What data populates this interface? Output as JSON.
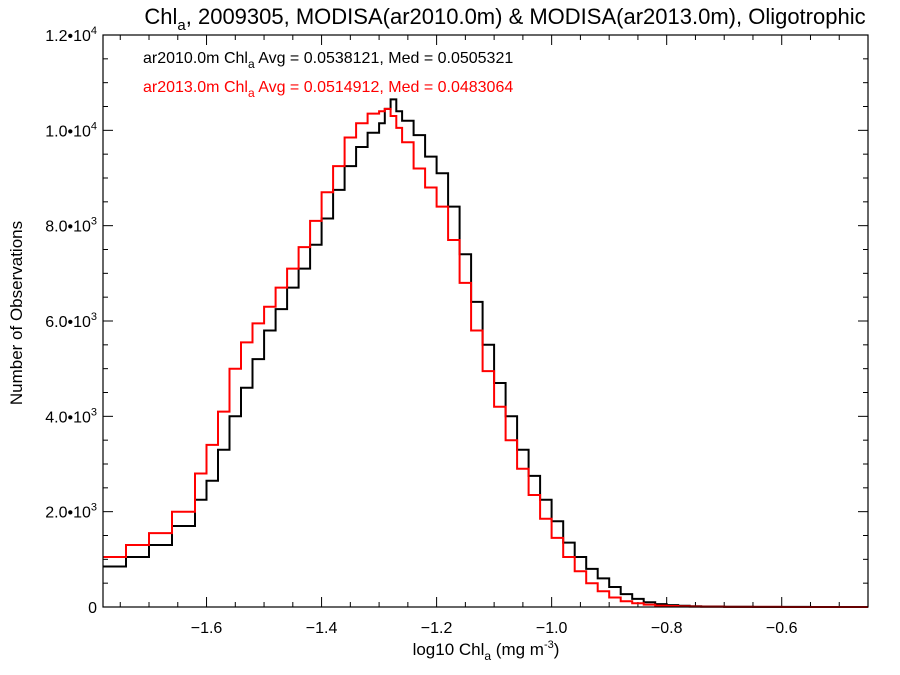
{
  "chart_data": {
    "type": "line",
    "title": {
      "main": "Chl",
      "sub": "a",
      "rest": ", 2009305, MODISA(ar2010.0m) & MODISA(ar2013.0m), Oligotrophic"
    },
    "xlabel": {
      "pre": "log10 Chl",
      "sub": "a",
      "mid": " (mg m",
      "sup": "-3",
      "post": ")"
    },
    "ylabel": "Number of Observations",
    "xlim": [
      -1.78,
      -0.45
    ],
    "ylim": [
      0,
      12000
    ],
    "x_ticks": [
      {
        "value": -1.6,
        "label": "−1.6"
      },
      {
        "value": -1.4,
        "label": "−1.4"
      },
      {
        "value": -1.2,
        "label": "−1.2"
      },
      {
        "value": -1.0,
        "label": "−1.0"
      },
      {
        "value": -0.8,
        "label": "−0.8"
      },
      {
        "value": -0.6,
        "label": "−0.6"
      }
    ],
    "y_ticks": [
      {
        "value": 0,
        "mant": "0",
        "exp": ""
      },
      {
        "value": 2000,
        "mant": "2.0•10",
        "exp": "3"
      },
      {
        "value": 4000,
        "mant": "4.0•10",
        "exp": "3"
      },
      {
        "value": 6000,
        "mant": "6.0•10",
        "exp": "3"
      },
      {
        "value": 8000,
        "mant": "8.0•10",
        "exp": "3"
      },
      {
        "value": 10000,
        "mant": "1.0•10",
        "exp": "4"
      },
      {
        "value": 12000,
        "mant": "1.2•10",
        "exp": "4"
      }
    ],
    "grid": false,
    "legend_position": "top-left",
    "series": [
      {
        "name_pre": "ar2010.0m Chl",
        "name_sub": "a",
        "name_post": " Avg = 0.0538121, Med = 0.0505321",
        "color": "#000000",
        "x": [
          -1.78,
          -1.74,
          -1.7,
          -1.66,
          -1.62,
          -1.6,
          -1.58,
          -1.56,
          -1.54,
          -1.52,
          -1.5,
          -1.48,
          -1.46,
          -1.44,
          -1.42,
          -1.4,
          -1.38,
          -1.36,
          -1.34,
          -1.32,
          -1.3,
          -1.29,
          -1.28,
          -1.27,
          -1.26,
          -1.24,
          -1.22,
          -1.2,
          -1.18,
          -1.16,
          -1.14,
          -1.12,
          -1.1,
          -1.08,
          -1.06,
          -1.04,
          -1.02,
          -1.0,
          -0.98,
          -0.96,
          -0.94,
          -0.92,
          -0.9,
          -0.88,
          -0.86,
          -0.84,
          -0.82,
          -0.8,
          -0.78,
          -0.76,
          -0.74,
          -0.7,
          -0.65,
          -0.6,
          -0.55,
          -0.5,
          -0.45
        ],
        "y": [
          850,
          1050,
          1300,
          1700,
          2250,
          2650,
          3300,
          4000,
          4600,
          5200,
          5800,
          6250,
          6700,
          7100,
          7600,
          8150,
          8750,
          9250,
          9650,
          9950,
          10150,
          10450,
          10650,
          10400,
          10200,
          9900,
          9450,
          9100,
          8400,
          7400,
          6400,
          5500,
          4700,
          4000,
          3300,
          2750,
          2250,
          1800,
          1350,
          1050,
          800,
          600,
          420,
          270,
          170,
          100,
          60,
          40,
          25,
          15,
          10,
          6,
          3,
          2,
          1,
          1,
          0
        ]
      },
      {
        "name_pre": "ar2013.0m Chl",
        "name_sub": "a",
        "name_post": " Avg = 0.0514912, Med = 0.0483064",
        "color": "#ff0000",
        "x": [
          -1.78,
          -1.74,
          -1.7,
          -1.66,
          -1.62,
          -1.6,
          -1.58,
          -1.56,
          -1.54,
          -1.52,
          -1.5,
          -1.48,
          -1.46,
          -1.44,
          -1.42,
          -1.4,
          -1.38,
          -1.36,
          -1.34,
          -1.32,
          -1.3,
          -1.29,
          -1.28,
          -1.27,
          -1.26,
          -1.24,
          -1.22,
          -1.2,
          -1.18,
          -1.16,
          -1.14,
          -1.12,
          -1.1,
          -1.08,
          -1.06,
          -1.04,
          -1.02,
          -1.0,
          -0.98,
          -0.96,
          -0.94,
          -0.92,
          -0.9,
          -0.88,
          -0.86,
          -0.84,
          -0.82,
          -0.8,
          -0.78,
          -0.76,
          -0.74,
          -0.7,
          -0.65,
          -0.6,
          -0.55,
          -0.5,
          -0.45
        ],
        "y": [
          1050,
          1300,
          1550,
          2000,
          2800,
          3400,
          4100,
          5000,
          5550,
          5950,
          6300,
          6700,
          7100,
          7550,
          8100,
          8700,
          9250,
          9850,
          10150,
          10350,
          10400,
          10450,
          10300,
          10050,
          9750,
          9200,
          8800,
          8400,
          7700,
          6800,
          5800,
          4950,
          4200,
          3500,
          2900,
          2350,
          1850,
          1450,
          1050,
          750,
          500,
          330,
          200,
          120,
          80,
          50,
          30,
          20,
          12,
          8,
          5,
          3,
          2,
          1,
          1,
          0,
          0
        ]
      }
    ]
  }
}
